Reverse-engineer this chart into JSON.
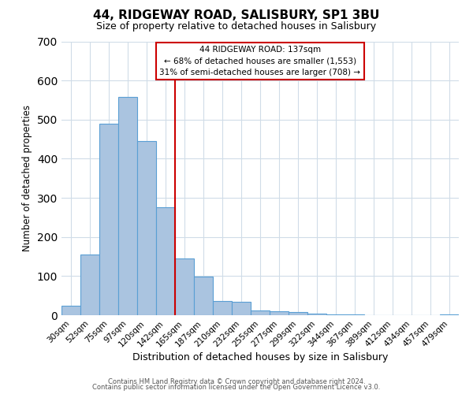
{
  "title": "44, RIDGEWAY ROAD, SALISBURY, SP1 3BU",
  "subtitle": "Size of property relative to detached houses in Salisbury",
  "xlabel": "Distribution of detached houses by size in Salisbury",
  "ylabel": "Number of detached properties",
  "bar_labels": [
    "30sqm",
    "52sqm",
    "75sqm",
    "97sqm",
    "120sqm",
    "142sqm",
    "165sqm",
    "187sqm",
    "210sqm",
    "232sqm",
    "255sqm",
    "277sqm",
    "299sqm",
    "322sqm",
    "344sqm",
    "367sqm",
    "389sqm",
    "412sqm",
    "434sqm",
    "457sqm",
    "479sqm"
  ],
  "bar_values": [
    25,
    155,
    490,
    558,
    445,
    275,
    145,
    98,
    36,
    35,
    13,
    10,
    8,
    5,
    2,
    2,
    1,
    0,
    0,
    0,
    3
  ],
  "bar_color": "#aac4e0",
  "bar_edge_color": "#5a9fd4",
  "vline_x": 5.5,
  "vline_color": "#cc0000",
  "ylim": [
    0,
    700
  ],
  "yticks": [
    0,
    100,
    200,
    300,
    400,
    500,
    600,
    700
  ],
  "annotation_title": "44 RIDGEWAY ROAD: 137sqm",
  "annotation_line1": "← 68% of detached houses are smaller (1,553)",
  "annotation_line2": "31% of semi-detached houses are larger (708) →",
  "annotation_box_color": "#ffffff",
  "annotation_box_edge": "#cc0000",
  "footer1": "Contains HM Land Registry data © Crown copyright and database right 2024.",
  "footer2": "Contains public sector information licensed under the Open Government Licence v3.0.",
  "fig_width": 6.0,
  "fig_height": 5.0,
  "background_color": "#ffffff",
  "grid_color": "#d0dce8"
}
